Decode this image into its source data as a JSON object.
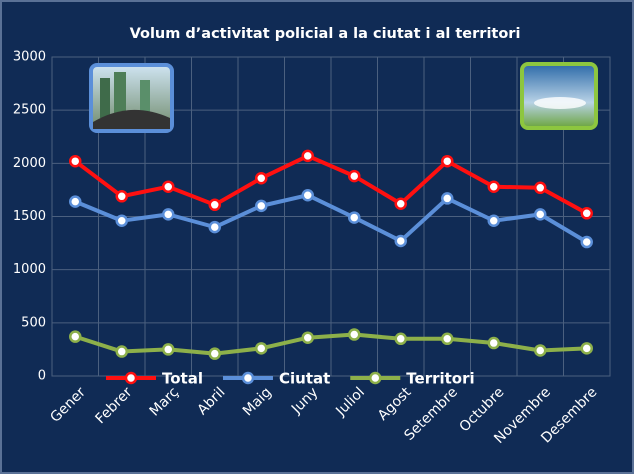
{
  "chart_data": {
    "type": "line",
    "title": "Volum d’activitat policial a la ciutat i al territori",
    "categories": [
      "Gener",
      "Febrer",
      "Març",
      "Abril",
      "Maig",
      "Juny",
      "Juliol",
      "Agost",
      "Setembre",
      "Octubre",
      "Novembre",
      "Desembre"
    ],
    "series": [
      {
        "name": "Total",
        "color": "#ff1010",
        "values": [
          2020,
          1690,
          1780,
          1610,
          1860,
          2070,
          1880,
          1620,
          2020,
          1780,
          1770,
          1530
        ]
      },
      {
        "name": "Ciutat",
        "color": "#5b8fd9",
        "values": [
          1640,
          1460,
          1520,
          1400,
          1600,
          1700,
          1490,
          1270,
          1670,
          1460,
          1520,
          1260
        ]
      },
      {
        "name": "Territori",
        "color": "#8db04a",
        "values": [
          370,
          230,
          250,
          210,
          260,
          360,
          390,
          350,
          350,
          310,
          240,
          260
        ]
      }
    ],
    "ylim": [
      0,
      3000
    ],
    "yticks": [
      0,
      500,
      1000,
      1500,
      2000,
      2500,
      3000
    ],
    "grid": true,
    "legend": "bottom"
  }
}
